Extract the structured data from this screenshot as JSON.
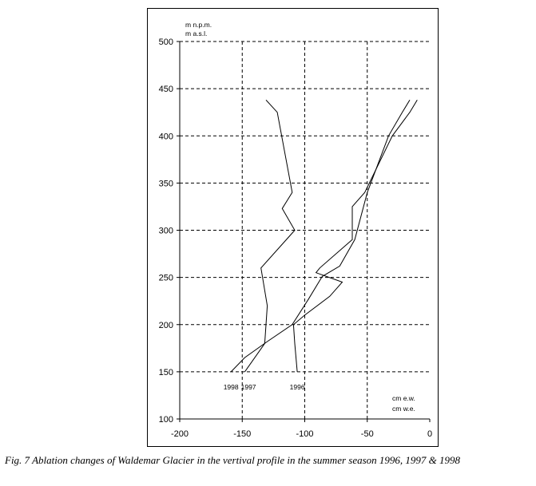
{
  "chart_data": {
    "type": "line",
    "unit_label_y": [
      "m n.p.m.",
      "m a.s.l."
    ],
    "unit_label_x": [
      "cm e.w.",
      "cm w.e."
    ],
    "xlim": [
      -200,
      0
    ],
    "ylim": [
      100,
      500
    ],
    "x_ticks": [
      -200,
      -150,
      -100,
      -50,
      0
    ],
    "y_ticks": [
      100,
      150,
      200,
      250,
      300,
      350,
      400,
      450,
      500
    ],
    "grid": true,
    "series": [
      {
        "name": "1998",
        "points": [
          [
            -159,
            150
          ],
          [
            -148,
            165
          ],
          [
            -130,
            182
          ],
          [
            -110,
            200
          ],
          [
            -97,
            227
          ],
          [
            -86,
            251
          ],
          [
            -72,
            262
          ],
          [
            -60,
            290
          ],
          [
            -50,
            340
          ],
          [
            -33,
            400
          ],
          [
            -22,
            425
          ],
          [
            -16,
            438
          ]
        ]
      },
      {
        "name": "1997",
        "points": [
          [
            -148,
            150
          ],
          [
            -132,
            180
          ],
          [
            -130,
            220
          ],
          [
            -135,
            260
          ],
          [
            -108,
            300
          ],
          [
            -118,
            323
          ],
          [
            -110,
            340
          ],
          [
            -122,
            425
          ],
          [
            -131,
            438
          ]
        ]
      },
      {
        "name": "1996",
        "points": [
          [
            -106,
            150
          ],
          [
            -108,
            180
          ],
          [
            -109,
            200
          ],
          [
            -100,
            210
          ],
          [
            -80,
            230
          ],
          [
            -70,
            245
          ],
          [
            -91,
            255
          ],
          [
            -88,
            260
          ],
          [
            -62,
            290
          ],
          [
            -62,
            325
          ],
          [
            -52,
            340
          ],
          [
            -30,
            400
          ],
          [
            -16,
            425
          ],
          [
            -10,
            438
          ]
        ]
      }
    ],
    "series_labels": [
      {
        "text": "1998",
        "x": -159,
        "y": 150
      },
      {
        "text": "1997",
        "x": -145,
        "y": 150
      },
      {
        "text": "1996",
        "x": -106,
        "y": 150
      }
    ]
  },
  "caption": "Fig. 7 Ablation changes of Waldemar Glacier in the vertival profile in the summer season 1996, 1997 & 1998"
}
